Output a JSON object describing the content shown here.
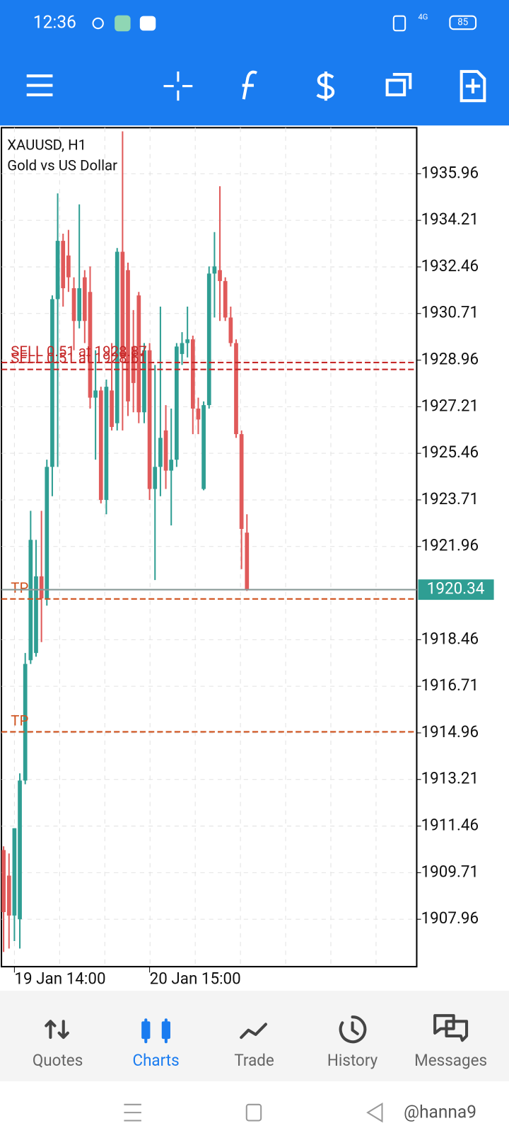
{
  "status_bar": {
    "time": "12:36",
    "network": "4G",
    "battery": "85"
  },
  "chart_data": {
    "type": "candlestick",
    "symbol": "XAUUSD, H1",
    "description": "Gold vs US Dollar",
    "categories": [
      null,
      null,
      "19 Jan 14:00",
      null,
      null,
      null,
      null,
      null,
      null,
      null,
      null,
      null,
      null,
      null,
      null,
      null,
      null,
      null,
      null,
      null,
      null,
      null,
      null,
      null,
      null,
      null,
      null,
      "20 Jan 15:00",
      null,
      null,
      null,
      null,
      null,
      null,
      null,
      null,
      null,
      null,
      null,
      null,
      null,
      null,
      null,
      null,
      null,
      null
    ],
    "open": [
      1910.56,
      1909.6,
      1908.1,
      1907.96,
      1913.17,
      1917.69,
      1917.96,
      1920.84,
      1920.01,
      1924.95,
      1931.25,
      1933.44,
      1932.89,
      1931.66,
      1930.43,
      1932.07,
      1931.52,
      1927.55,
      1927.82,
      1923.71,
      1927.82,
      1926.59,
      1933.03,
      1932.34,
      1929.47,
      1931.39,
      1927.0,
      1929.33,
      1924.12,
      1924.95,
      1926.32,
      1924.81,
      1925.22,
      1929.19,
      1929.6,
      1929.74,
      1927.14,
      1924.12,
      1927.27,
      1932.21,
      1932.34,
      1931.93,
      1930.56,
      1929.6,
      1926.18,
      1922.48
    ],
    "high": [
      1910.7,
      1910.43,
      1911.38,
      1913.44,
      1917.96,
      1923.3,
      1922.21,
      1923.3,
      1925.22,
      1931.39,
      1935.22,
      1933.71,
      1933.85,
      1932.07,
      1934.81,
      1932.34,
      1932.48,
      1929.33,
      1927.96,
      1928.23,
      1929.6,
      1933.17,
      1937.55,
      1932.62,
      1930.84,
      1931.52,
      1929.6,
      1929.6,
      1928.78,
      1930.97,
      1927.27,
      1927.14,
      1929.6,
      1930.01,
      1930.97,
      1929.88,
      1927.55,
      1927.41,
      1932.48,
      1933.77,
      1935.49,
      1932.07,
      1930.97,
      1929.74,
      1926.32,
      1923.17
    ],
    "low": [
      1906.73,
      1906.86,
      1907.14,
      1906.86,
      1913.03,
      1917.55,
      1917.82,
      1918.37,
      1919.74,
      1923.85,
      1924.95,
      1930.97,
      1931.52,
      1929.33,
      1930.15,
      1929.6,
      1927.14,
      1925.22,
      1923.58,
      1923.17,
      1926.32,
      1926.32,
      1926.32,
      1926.86,
      1927.0,
      1926.59,
      1926.59,
      1923.71,
      1920.7,
      1923.85,
      1924.12,
      1922.75,
      1924.95,
      1928.78,
      1929.06,
      1926.18,
      1926.18,
      1924.07,
      1927.14,
      1930.56,
      1930.43,
      1930.43,
      1929.47,
      1926.04,
      1921.11,
      1920.29
    ],
    "close": [
      1908.23,
      1908.1,
      1911.38,
      1913.17,
      1917.55,
      1922.21,
      1920.84,
      1920.01,
      1924.95,
      1931.25,
      1933.44,
      1931.66,
      1932.07,
      1930.43,
      1931.66,
      1930.43,
      1927.55,
      1927.82,
      1923.71,
      1927.96,
      1926.45,
      1933.03,
      1929.06,
      1927.41,
      1928.1,
      1927.0,
      1929.33,
      1924.12,
      1924.95,
      1926.04,
      1924.81,
      1925.22,
      1929.47,
      1929.6,
      1929.74,
      1927.14,
      1926.73,
      1927.27,
      1932.21,
      1932.48,
      1931.93,
      1930.56,
      1929.6,
      1926.18,
      1922.62,
      1920.34
    ],
    "up_color": "#2f9e93",
    "down_color": "#e05a5a",
    "ylim": [
      1906.18,
      1937.69
    ],
    "yticks": [
      1935.96,
      1934.21,
      1932.46,
      1930.71,
      1928.96,
      1927.21,
      1925.46,
      1923.71,
      1921.96,
      1918.46,
      1916.71,
      1914.96,
      1913.21,
      1911.46,
      1909.71,
      1907.96
    ],
    "grid": true,
    "current_price": 1920.34,
    "current_price_color": "#2f9e93",
    "levels": [
      {
        "label": "SELL 0.51 at 1928.87",
        "value": 1928.87,
        "color": "#c62828"
      },
      {
        "label": "SELL 0.51 at 1928.61",
        "value": 1928.61,
        "color": "#c62828"
      },
      {
        "label": "TP",
        "value": 1919.99,
        "color": "#d0531f"
      },
      {
        "label": "TP",
        "value": 1915.0,
        "color": "#d0531f"
      }
    ]
  },
  "nav": {
    "items": [
      {
        "label": "Quotes"
      },
      {
        "label": "Charts"
      },
      {
        "label": "Trade"
      },
      {
        "label": "History"
      },
      {
        "label": "Messages"
      }
    ],
    "active": 1
  },
  "watermark": "@hanna9"
}
